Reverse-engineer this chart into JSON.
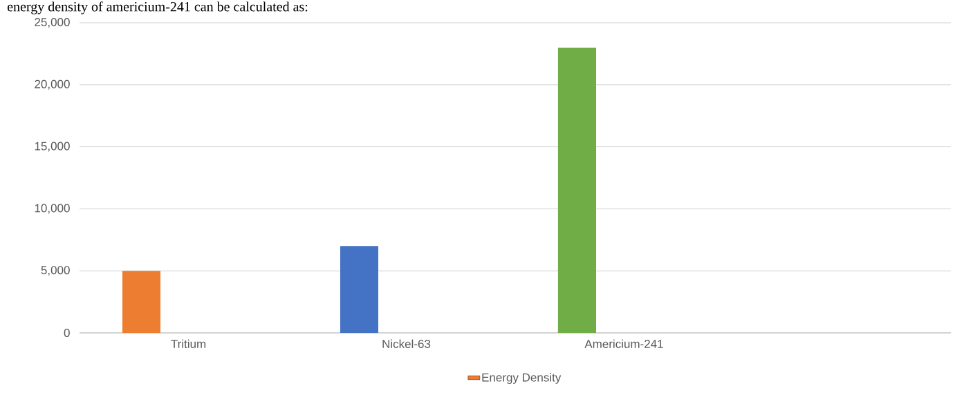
{
  "chart_data": {
    "type": "bar",
    "annotations": [
      "energy density of americium-241 can be calculated as:"
    ],
    "categories": [
      "Tritium",
      "Nickel-63",
      "Americium-241",
      null
    ],
    "series": [
      {
        "name": "Energy Density",
        "color": "#ed7d31",
        "colors": [
          "#ed7d31",
          "#4472c4",
          "#70ad47",
          null
        ],
        "values": [
          5000,
          7000,
          23000,
          null
        ]
      }
    ],
    "ylim": [
      0,
      25000
    ],
    "yticks": [
      {
        "value": 0,
        "label": "0"
      },
      {
        "value": 5000,
        "label": "5,000"
      },
      {
        "value": 10000,
        "label": "10,000"
      },
      {
        "value": 15000,
        "label": "15,000"
      },
      {
        "value": 20000,
        "label": "20,000"
      },
      {
        "value": 25000,
        "label": "25,000"
      }
    ],
    "grid": "y",
    "legend": "bottom"
  }
}
